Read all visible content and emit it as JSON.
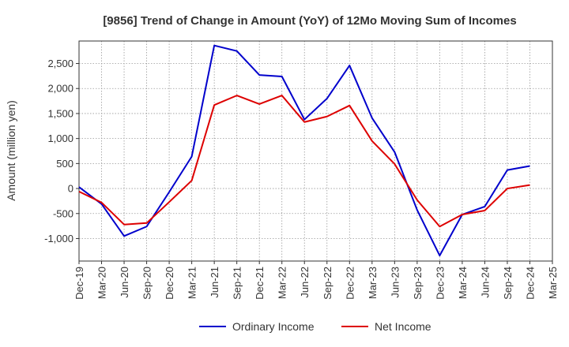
{
  "chart_data": {
    "type": "line",
    "title": "[9856]  Trend of Change in Amount (YoY) of 12Mo Moving Sum of Incomes",
    "ylabel": "Amount (million yen)",
    "xlabel": "",
    "ylim": [
      -1450,
      2950
    ],
    "yticks": [
      -1000,
      -500,
      0,
      500,
      1000,
      1500,
      2000,
      2500
    ],
    "ytick_labels": [
      "-1,000",
      "-500",
      "0",
      "500",
      "1,000",
      "1,500",
      "2,000",
      "2,500"
    ],
    "x_tick_labels": [
      "Dec-19",
      "Mar-20",
      "Jun-20",
      "Sep-20",
      "Dec-20",
      "Mar-21",
      "Jun-21",
      "Sep-21",
      "Dec-21",
      "Mar-22",
      "Jun-22",
      "Sep-22",
      "Dec-22",
      "Mar-23",
      "Jun-23",
      "Sep-23",
      "Dec-23",
      "Mar-24",
      "Jun-24",
      "Sep-24",
      "Dec-24",
      "Mar-25"
    ],
    "grid": true,
    "legend_position": "bottom",
    "series": [
      {
        "name": "Ordinary Income",
        "color": "#0000cc",
        "values": [
          30,
          -310,
          -950,
          -760,
          -70,
          640,
          2860,
          2750,
          2270,
          2240,
          1380,
          1800,
          2460,
          1410,
          730,
          -430,
          -1340,
          -520,
          -360,
          370,
          450
        ]
      },
      {
        "name": "Net Income",
        "color": "#dd0000",
        "values": [
          -60,
          -280,
          -720,
          -690,
          -270,
          160,
          1670,
          1860,
          1690,
          1860,
          1330,
          1440,
          1660,
          950,
          490,
          -230,
          -760,
          -520,
          -440,
          0,
          70
        ]
      }
    ]
  }
}
